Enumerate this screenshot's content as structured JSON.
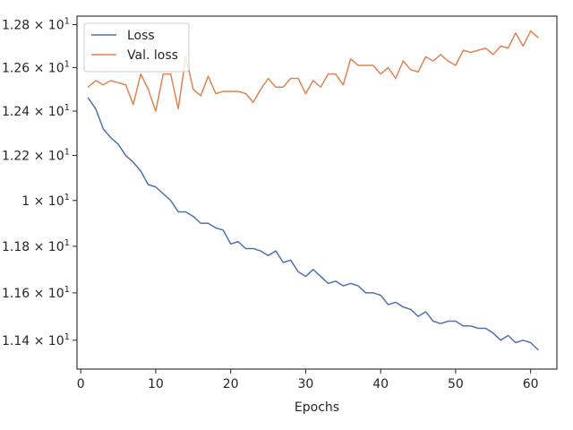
{
  "chart_data": {
    "type": "line",
    "title": "",
    "xlabel": "Epochs",
    "ylabel": "",
    "yscale": "log",
    "grid": false,
    "legend_position": "top-left",
    "xlim": [
      -0.5,
      63.5
    ],
    "ylim": [
      11.28,
      12.84
    ],
    "xticks": [
      0,
      10,
      20,
      30,
      40,
      50,
      60
    ],
    "xtick_labels": [
      "0",
      "10",
      "20",
      "30",
      "40",
      "50",
      "60"
    ],
    "yticks": [
      11.4,
      11.6,
      11.8,
      12.0,
      12.2,
      12.4,
      12.6,
      12.8
    ],
    "ytick_labels": [
      {
        "base": "1.14",
        "exp": "1"
      },
      {
        "base": "1.16",
        "exp": "1"
      },
      {
        "base": "1.18",
        "exp": "1"
      },
      {
        "base": "1",
        "exp": "1"
      },
      {
        "base": "1.22",
        "exp": "1"
      },
      {
        "base": "1.24",
        "exp": "1"
      },
      {
        "base": "1.26",
        "exp": "1"
      },
      {
        "base": "1.28",
        "exp": "1"
      }
    ],
    "series": [
      {
        "name": "Loss",
        "color": "#4c72b0",
        "x": [
          1,
          2,
          3,
          4,
          5,
          6,
          7,
          8,
          9,
          10,
          11,
          12,
          13,
          14,
          15,
          16,
          17,
          18,
          19,
          20,
          21,
          22,
          23,
          24,
          25,
          26,
          27,
          28,
          29,
          30,
          31,
          32,
          33,
          34,
          35,
          36,
          37,
          38,
          39,
          40,
          41,
          42,
          43,
          44,
          45,
          46,
          47,
          48,
          49,
          50,
          51,
          52,
          53,
          54,
          55,
          56,
          57,
          58,
          59,
          60,
          61
        ],
        "values": [
          12.46,
          12.41,
          12.32,
          12.28,
          12.25,
          12.2,
          12.17,
          12.13,
          12.07,
          12.06,
          12.03,
          12.0,
          11.95,
          11.95,
          11.93,
          11.9,
          11.9,
          11.88,
          11.87,
          11.81,
          11.82,
          11.79,
          11.79,
          11.78,
          11.76,
          11.78,
          11.73,
          11.74,
          11.69,
          11.67,
          11.7,
          11.67,
          11.64,
          11.65,
          11.63,
          11.64,
          11.63,
          11.6,
          11.6,
          11.59,
          11.55,
          11.56,
          11.54,
          11.53,
          11.5,
          11.52,
          11.48,
          11.47,
          11.48,
          11.48,
          11.46,
          11.46,
          11.45,
          11.45,
          11.43,
          11.4,
          11.42,
          11.39,
          11.4,
          11.39,
          11.36
        ]
      },
      {
        "name": "Val. loss",
        "color": "#dd8452",
        "x": [
          1,
          2,
          3,
          4,
          5,
          6,
          7,
          8,
          9,
          10,
          11,
          12,
          13,
          14,
          15,
          16,
          17,
          18,
          19,
          20,
          21,
          22,
          23,
          24,
          25,
          26,
          27,
          28,
          29,
          30,
          31,
          32,
          33,
          34,
          35,
          36,
          37,
          38,
          39,
          40,
          41,
          42,
          43,
          44,
          45,
          46,
          47,
          48,
          49,
          50,
          51,
          52,
          53,
          54,
          55,
          56,
          57,
          58,
          59,
          60,
          61
        ],
        "values": [
          12.51,
          12.54,
          12.52,
          12.54,
          12.53,
          12.52,
          12.43,
          12.57,
          12.5,
          12.4,
          12.57,
          12.57,
          12.41,
          12.65,
          12.5,
          12.47,
          12.56,
          12.48,
          12.49,
          12.49,
          12.49,
          12.48,
          12.44,
          12.5,
          12.55,
          12.51,
          12.51,
          12.55,
          12.55,
          12.48,
          12.54,
          12.51,
          12.57,
          12.57,
          12.52,
          12.64,
          12.61,
          12.61,
          12.61,
          12.57,
          12.6,
          12.55,
          12.63,
          12.59,
          12.58,
          12.65,
          12.63,
          12.66,
          12.63,
          12.61,
          12.68,
          12.67,
          12.68,
          12.69,
          12.66,
          12.7,
          12.69,
          12.76,
          12.7,
          12.77,
          12.74
        ]
      }
    ]
  }
}
